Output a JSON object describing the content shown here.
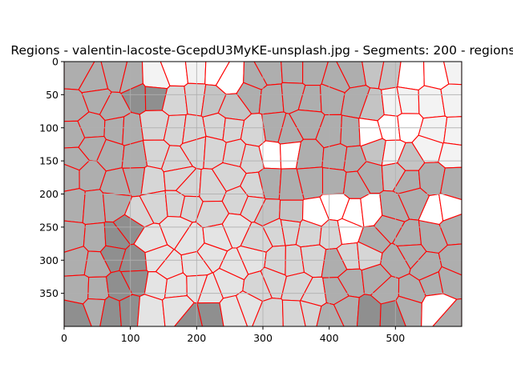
{
  "chart_data": {
    "type": "heatmap",
    "title": "Regions - valentin-lacoste-GcepdU3MyKE-unsplash.jpg - Segments: 200 - regions",
    "xlabel": "",
    "ylabel": "",
    "xlim": [
      0,
      600
    ],
    "ylim": [
      400,
      0
    ],
    "x_ticks": [
      0,
      100,
      200,
      300,
      400,
      500
    ],
    "y_ticks": [
      0,
      50,
      100,
      150,
      200,
      250,
      300,
      350
    ],
    "grid": true,
    "image_width": 600,
    "image_height": 400,
    "segments": 200,
    "boundary_color": "#ff0000",
    "region_colors": {
      "dark": "#8f8f8f",
      "mid_dark": "#aeaeae",
      "mid": "#c4c4c4",
      "light": "#d6d6d6",
      "lighter": "#e4e4e4",
      "lightest": "#f3f3f3",
      "white": "#ffffff"
    },
    "bright_regions": [
      {
        "x": 170,
        "y": 18
      },
      {
        "x": 230,
        "y": 22
      },
      {
        "x": 320,
        "y": 150
      },
      {
        "x": 392,
        "y": 230
      },
      {
        "x": 422,
        "y": 230
      },
      {
        "x": 455,
        "y": 232
      },
      {
        "x": 480,
        "y": 105
      },
      {
        "x": 515,
        "y": 120
      },
      {
        "x": 545,
        "y": 30
      },
      {
        "x": 565,
        "y": 205
      },
      {
        "x": 560,
        "y": 370
      }
    ],
    "dark_regions": [
      {
        "x": 30,
        "y": 395
      },
      {
        "x": 95,
        "y": 270
      },
      {
        "x": 95,
        "y": 350
      },
      {
        "x": 110,
        "y": 60
      },
      {
        "x": 205,
        "y": 395
      },
      {
        "x": 470,
        "y": 395
      }
    ]
  }
}
